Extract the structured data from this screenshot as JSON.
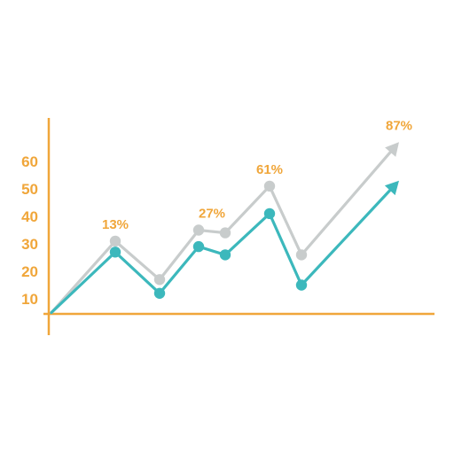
{
  "chart_data": {
    "type": "line",
    "title": "",
    "xlabel": "",
    "ylabel": "",
    "ylim": [
      5,
      60
    ],
    "yticks": [
      "10",
      "20",
      "30",
      "40",
      "50",
      "60"
    ],
    "legend": "none",
    "grid": false,
    "arrow_ends": true,
    "colors": {
      "axis": "#f0a63a",
      "tick_text": "#f0a63a",
      "annotation_text": "#f0a63a",
      "series_gray": "#c8cccc",
      "series_teal": "#3cb8bc"
    },
    "x": [
      0,
      1,
      2,
      3,
      4,
      5,
      6,
      7
    ],
    "series": [
      {
        "color": "#c8cccc",
        "values": [
          5,
          31,
          17,
          35,
          34,
          51,
          26,
          67
        ],
        "marker_indices": [
          1,
          2,
          3,
          4,
          5,
          6
        ]
      },
      {
        "color": "#3cb8bc",
        "values": [
          5,
          27,
          12,
          29,
          26,
          41,
          15,
          53
        ],
        "marker_indices": [
          1,
          2,
          3,
          4,
          5,
          6
        ]
      }
    ],
    "annotations": [
      {
        "text": "13%",
        "x": 1,
        "y": 31
      },
      {
        "text": "27%",
        "x": 3.5,
        "y": 35
      },
      {
        "text": "61%",
        "x": 5,
        "y": 51
      },
      {
        "text": "87%",
        "x": 7,
        "y": 67
      }
    ]
  }
}
